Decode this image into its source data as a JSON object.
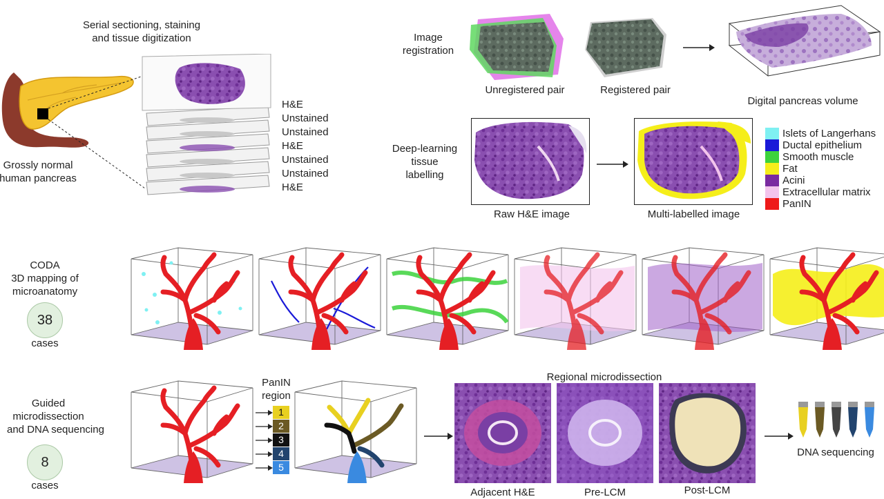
{
  "colors": {
    "islets": "#7ff0f2",
    "ductal": "#1a1ad8",
    "smooth_muscle": "#3cd23c",
    "fat": "#f5ee1a",
    "acini": "#7a2aa0",
    "ecm": "#f3c4ec",
    "panin": "#ee1a1a",
    "region1": "#e8d020",
    "region2": "#6b5a24",
    "region3": "#111111",
    "region4": "#22446e",
    "region5": "#3a8ae0"
  },
  "top_left": {
    "sectioning_title_line1": "Serial sectioning, staining",
    "sectioning_title_line2": "and tissue digitization",
    "pancreas_label_line1": "Grossly normal",
    "pancreas_label_line2": "human pancreas",
    "stack_labels": [
      "H&E",
      "Unstained",
      "Unstained",
      "H&E",
      "Unstained",
      "Unstained",
      "H&E"
    ]
  },
  "registration": {
    "label_line1": "Image",
    "label_line2": "registration",
    "unregistered": "Unregistered pair",
    "registered": "Registered pair",
    "volume": "Digital pancreas volume"
  },
  "deep_learning": {
    "label_line1": "Deep-learning",
    "label_line2": "tissue",
    "label_line3": "labelling",
    "raw": "Raw H&E image",
    "multi": "Multi-labelled image"
  },
  "legend": [
    {
      "label": "Islets of Langerhans",
      "color": "#7ff0f2"
    },
    {
      "label": "Ductal epithelium",
      "color": "#1a1ad8"
    },
    {
      "label": "Smooth muscle",
      "color": "#3cd23c"
    },
    {
      "label": "Fat",
      "color": "#f5ee1a"
    },
    {
      "label": "Acini",
      "color": "#7a2aa0"
    },
    {
      "label": "Extracellular matrix",
      "color": "#f3c4ec"
    },
    {
      "label": "PanIN",
      "color": "#ee1a1a"
    }
  ],
  "coda": {
    "label_line1": "CODA",
    "label_line2": "3D mapping of",
    "label_line3": "microanatomy",
    "count": "38",
    "count_unit": "cases"
  },
  "guided": {
    "label_line1": "Guided",
    "label_line2": "microdissection",
    "label_line3": "and DNA sequencing",
    "count": "8",
    "count_unit": "cases",
    "panin_region_line1": "PanIN",
    "panin_region_line2": "region",
    "regions": [
      "1",
      "2",
      "3",
      "4",
      "5"
    ],
    "regional_title": "Regional microdissection",
    "adjacent": "Adjacent H&E",
    "pre": "Pre-LCM",
    "post": "Post-LCM",
    "dna": "DNA sequencing"
  }
}
